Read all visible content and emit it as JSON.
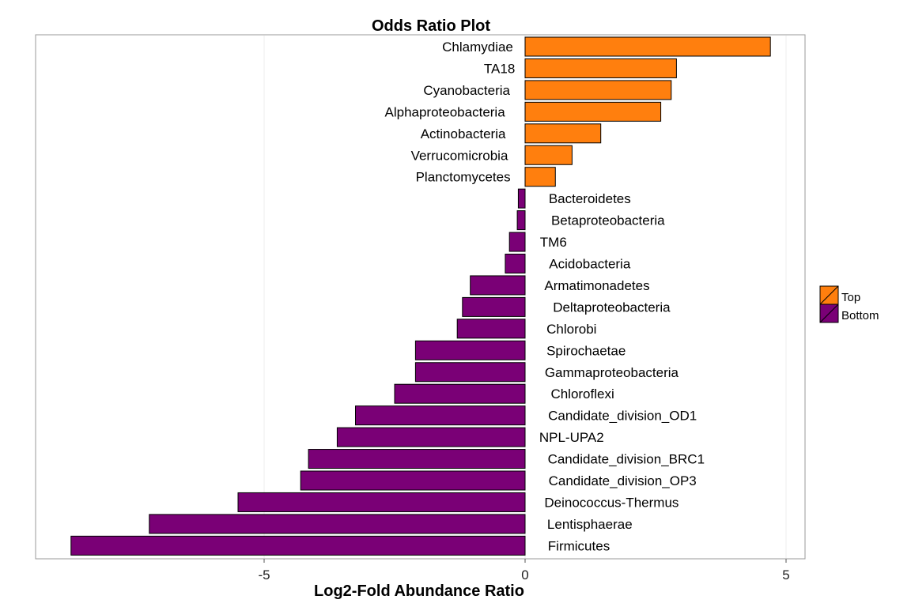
{
  "chart_data": {
    "type": "bar",
    "orientation": "horizontal",
    "title": "Odds Ratio Plot",
    "xlabel": "Log2-Fold Abundance Ratio",
    "ylabel": "",
    "xlim": [
      -8.7,
      5.3
    ],
    "xticks": [
      -5,
      0,
      5
    ],
    "grid": true,
    "legend_position": "right",
    "legend": [
      {
        "name": "Top",
        "color": "#ff7f0e"
      },
      {
        "name": "Bottom",
        "color": "#7a0076"
      }
    ],
    "bars": [
      {
        "label": "Chlamydiae",
        "value": 4.7,
        "group": "Top"
      },
      {
        "label": "TA18",
        "value": 2.9,
        "group": "Top"
      },
      {
        "label": "Cyanobacteria",
        "value": 2.8,
        "group": "Top"
      },
      {
        "label": "Alphaproteobacteria",
        "value": 2.6,
        "group": "Top"
      },
      {
        "label": "Actinobacteria",
        "value": 1.45,
        "group": "Top"
      },
      {
        "label": "Verrucomicrobia",
        "value": 0.9,
        "group": "Top"
      },
      {
        "label": "Planctomycetes",
        "value": 0.58,
        "group": "Top"
      },
      {
        "label": "Bacteroidetes",
        "value": -0.13,
        "group": "Bottom"
      },
      {
        "label": "Betaproteobacteria",
        "value": -0.15,
        "group": "Bottom"
      },
      {
        "label": "TM6",
        "value": -0.3,
        "group": "Bottom"
      },
      {
        "label": "Acidobacteria",
        "value": -0.38,
        "group": "Bottom"
      },
      {
        "label": "Armatimonadetes",
        "value": -1.05,
        "group": "Bottom"
      },
      {
        "label": "Deltaproteobacteria",
        "value": -1.2,
        "group": "Bottom"
      },
      {
        "label": "Chlorobi",
        "value": -1.3,
        "group": "Bottom"
      },
      {
        "label": "Spirochaetae",
        "value": -2.1,
        "group": "Bottom"
      },
      {
        "label": "Gammaproteobacteria",
        "value": -2.1,
        "group": "Bottom"
      },
      {
        "label": "Chloroflexi",
        "value": -2.5,
        "group": "Bottom"
      },
      {
        "label": "Candidate_division_OD1",
        "value": -3.25,
        "group": "Bottom"
      },
      {
        "label": "NPL-UPA2",
        "value": -3.6,
        "group": "Bottom"
      },
      {
        "label": "Candidate_division_BRC1",
        "value": -4.15,
        "group": "Bottom"
      },
      {
        "label": "Candidate_division_OP3",
        "value": -4.3,
        "group": "Bottom"
      },
      {
        "label": "Deinococcus-Thermus",
        "value": -5.5,
        "group": "Bottom"
      },
      {
        "label": "Lentisphaerae",
        "value": -7.2,
        "group": "Bottom"
      },
      {
        "label": "Firmicutes",
        "value": -8.7,
        "group": "Bottom"
      }
    ]
  }
}
